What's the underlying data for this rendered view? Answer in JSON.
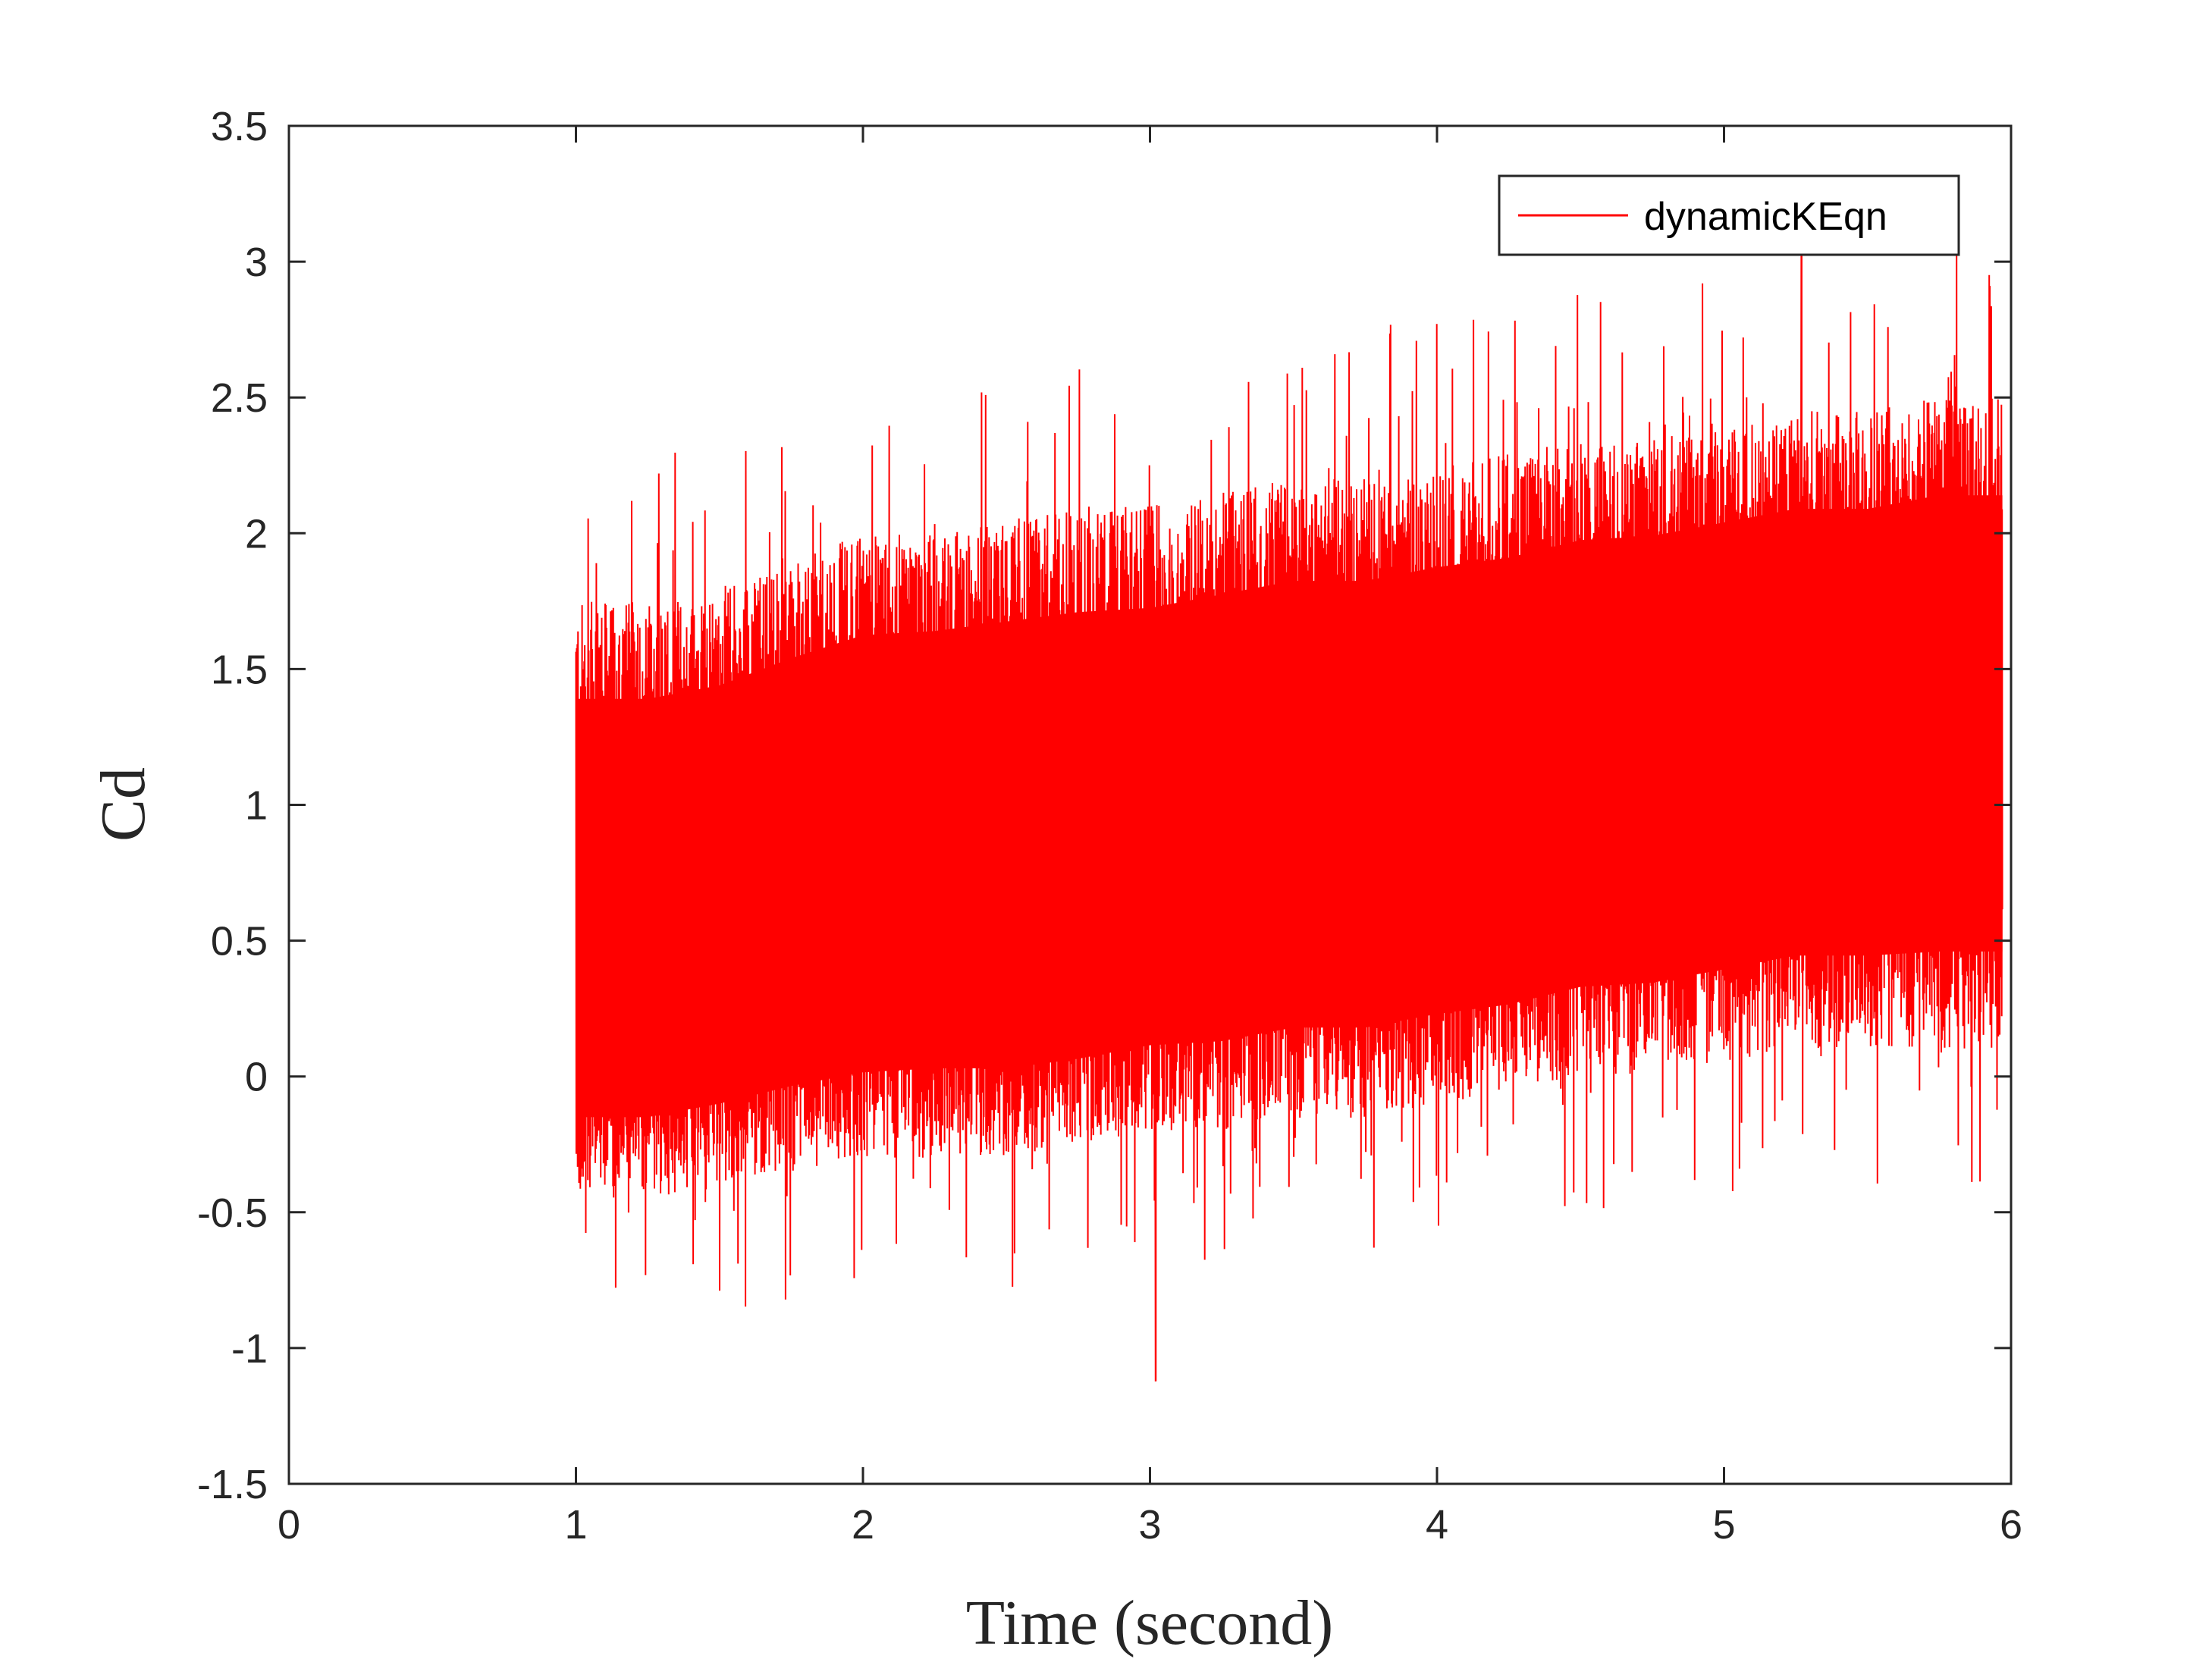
{
  "chart_data": {
    "type": "line",
    "xlabel": "Time (second)",
    "ylabel": "Cd",
    "xlim": [
      0,
      6
    ],
    "ylim": [
      -1.5,
      3.5
    ],
    "x_ticks": [
      "0",
      "1",
      "2",
      "3",
      "4",
      "5",
      "6"
    ],
    "y_ticks": [
      "-1.5",
      "-1",
      "-0.5",
      "0",
      "0.5",
      "1",
      "1.5",
      "2",
      "2.5",
      "3",
      "3.5"
    ],
    "grid": false,
    "legend_position": "top-right",
    "series": [
      {
        "name": "dynamicKEqn",
        "color": "#ff0000",
        "x": [
          1.0,
          1.25,
          1.5,
          1.75,
          2.0,
          2.25,
          2.5,
          2.75,
          3.0,
          3.25,
          3.5,
          3.75,
          4.0,
          4.25,
          4.5,
          4.75,
          5.0,
          5.25,
          5.5,
          5.75,
          5.97
        ],
        "mean": [
          0.55,
          0.55,
          0.6,
          0.7,
          0.75,
          0.8,
          0.8,
          0.8,
          0.85,
          0.9,
          0.95,
          0.95,
          1.0,
          1.0,
          1.1,
          1.15,
          1.2,
          1.25,
          1.25,
          1.3,
          1.3
        ],
        "upper_envelope": [
          1.75,
          1.75,
          1.8,
          1.9,
          2.0,
          2.0,
          2.05,
          2.1,
          2.1,
          2.15,
          2.2,
          2.2,
          2.25,
          2.3,
          2.35,
          2.35,
          2.4,
          2.45,
          2.45,
          2.5,
          2.5
        ],
        "lower_envelope": [
          -0.45,
          -0.45,
          -0.4,
          -0.35,
          -0.3,
          -0.3,
          -0.3,
          -0.25,
          -0.2,
          -0.2,
          -0.15,
          -0.15,
          -0.1,
          -0.05,
          0.0,
          0.0,
          0.05,
          0.1,
          0.1,
          0.1,
          0.1
        ],
        "peak_max": {
          "x": 5.27,
          "y": 3.05
        },
        "peak_min": {
          "x": 3.02,
          "y": -1.12
        }
      }
    ]
  }
}
